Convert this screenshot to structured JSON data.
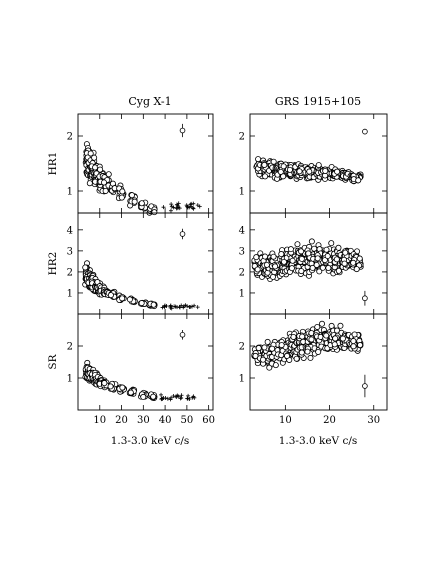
{
  "chart_data": [
    {
      "type": "scatter",
      "title": "Cyg X-1",
      "xlabel": "1.3-3.0 keV c/s",
      "xlim": [
        0,
        62
      ],
      "x_ticks": [
        10,
        20,
        30,
        40,
        50,
        60
      ],
      "panels": [
        {
          "ylabel": "HR1",
          "ylim": [
            0.6,
            2.4
          ],
          "y_ticks": [
            1,
            2
          ],
          "marker": "circle",
          "main": {
            "x": [
              4.5,
              5.2,
              6.0,
              7.5,
              9.0,
              11.0,
              13.0,
              16.0,
              20.0,
              25.0,
              30.0,
              34.0
            ],
            "y": [
              1.55,
              1.5,
              1.42,
              1.35,
              1.28,
              1.2,
              1.13,
              1.05,
              0.97,
              0.86,
              0.74,
              0.66
            ],
            "spread": [
              0.22,
              0.22,
              0.2,
              0.18,
              0.16,
              0.15,
              0.14,
              0.12,
              0.1,
              0.09,
              0.07,
              0.06
            ]
          },
          "cluster": {
            "x_range": [
              38,
              56
            ],
            "y_center": 0.72,
            "y_spread": 0.08
          },
          "error_bar": {
            "x": 48,
            "y": 2.1,
            "err": 0.12
          }
        },
        {
          "ylabel": "HR2",
          "ylim": [
            0.0,
            4.8
          ],
          "y_ticks": [
            1,
            2,
            3,
            4
          ],
          "marker": "circle",
          "main": {
            "x": [
              4.5,
              5.2,
              6.0,
              7.5,
              9.0,
              11.0,
              13.0,
              16.0,
              20.0,
              25.0,
              30.0,
              34.0
            ],
            "y": [
              1.85,
              1.7,
              1.55,
              1.4,
              1.25,
              1.1,
              1.0,
              0.88,
              0.75,
              0.62,
              0.5,
              0.42
            ],
            "spread": [
              0.35,
              0.32,
              0.28,
              0.24,
              0.2,
              0.18,
              0.15,
              0.12,
              0.1,
              0.08,
              0.06,
              0.05
            ]
          },
          "cluster": {
            "x_range": [
              38,
              56
            ],
            "y_center": 0.35,
            "y_spread": 0.08
          },
          "error_bar": {
            "x": 48,
            "y": 3.8,
            "err": 0.25
          }
        },
        {
          "ylabel": "SR",
          "ylim": [
            0.0,
            3.0
          ],
          "y_ticks": [
            1,
            2
          ],
          "marker": "circle",
          "main": {
            "x": [
              4.5,
              5.2,
              6.0,
              7.5,
              9.0,
              11.0,
              13.0,
              16.0,
              20.0,
              25.0,
              30.0,
              34.0
            ],
            "y": [
              1.2,
              1.15,
              1.08,
              1.0,
              0.93,
              0.86,
              0.8,
              0.73,
              0.65,
              0.56,
              0.48,
              0.42
            ],
            "spread": [
              0.18,
              0.17,
              0.15,
              0.13,
              0.11,
              0.1,
              0.09,
              0.08,
              0.07,
              0.06,
              0.05,
              0.05
            ]
          },
          "cluster": {
            "x_range": [
              38,
              56
            ],
            "y_center": 0.4,
            "y_spread": 0.08
          },
          "error_bar": {
            "x": 48,
            "y": 2.35,
            "err": 0.15
          }
        }
      ]
    },
    {
      "type": "scatter",
      "title": "GRS 1915+105",
      "xlabel": "1.3-3.0 keV c/s",
      "xlim": [
        2,
        33
      ],
      "x_ticks": [
        10,
        20,
        30
      ],
      "panels": [
        {
          "ylabel": "",
          "ylim": [
            0.6,
            2.4
          ],
          "y_ticks": [
            1,
            2
          ],
          "marker": "circle",
          "main": {
            "x": [
              4.5,
              6.0,
              8.0,
              10.0,
              12.0,
              14.0,
              16.0,
              18.0,
              20.0,
              22.0,
              24.0,
              26.0
            ],
            "y": [
              1.45,
              1.4,
              1.38,
              1.38,
              1.36,
              1.35,
              1.34,
              1.33,
              1.32,
              1.3,
              1.28,
              1.25
            ],
            "spread": [
              0.15,
              0.14,
              0.13,
              0.12,
              0.11,
              0.1,
              0.09,
              0.08,
              0.07,
              0.06,
              0.05,
              0.05
            ]
          },
          "error_bar": {
            "x": 28,
            "y": 2.08,
            "err": 0.05
          }
        },
        {
          "ylabel": "",
          "ylim": [
            0.0,
            4.8
          ],
          "y_ticks": [
            1,
            2,
            3,
            4
          ],
          "marker": "circle",
          "main": {
            "x": [
              4.0,
              6.0,
              8.0,
              10.0,
              12.0,
              14.0,
              16.0,
              18.0,
              20.0,
              22.0,
              24.0,
              26.0
            ],
            "y": [
              2.3,
              2.3,
              2.3,
              2.4,
              2.5,
              2.5,
              2.6,
              2.6,
              2.6,
              2.6,
              2.6,
              2.5
            ],
            "spread": [
              0.4,
              0.45,
              0.5,
              0.55,
              0.55,
              0.55,
              0.5,
              0.5,
              0.45,
              0.45,
              0.4,
              0.4
            ]
          },
          "error_bar": {
            "x": 28,
            "y": 0.75,
            "err": 0.35
          }
        },
        {
          "ylabel": "",
          "ylim": [
            0.0,
            3.0
          ],
          "y_ticks": [
            1,
            2
          ],
          "marker": "circle",
          "main": {
            "x": [
              4.0,
              6.0,
              8.0,
              10.0,
              12.0,
              14.0,
              16.0,
              18.0,
              20.0,
              22.0,
              24.0,
              26.0
            ],
            "y": [
              1.7,
              1.75,
              1.8,
              1.9,
              2.0,
              2.1,
              2.15,
              2.2,
              2.2,
              2.2,
              2.15,
              2.1
            ],
            "spread": [
              0.25,
              0.28,
              0.3,
              0.35,
              0.35,
              0.35,
              0.33,
              0.3,
              0.28,
              0.25,
              0.22,
              0.2
            ]
          },
          "error_bar": {
            "x": 28,
            "y": 0.75,
            "err": 0.35
          }
        }
      ]
    }
  ]
}
